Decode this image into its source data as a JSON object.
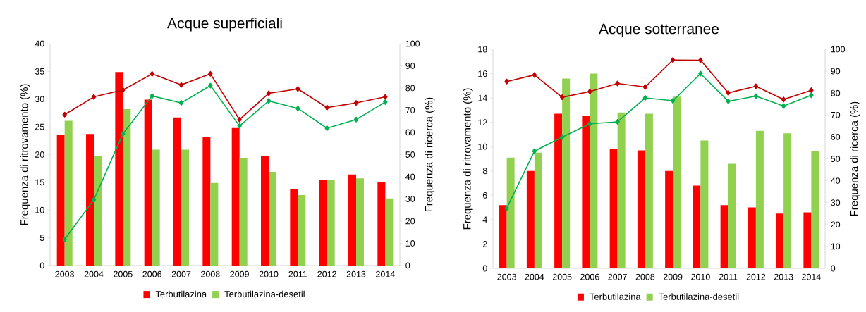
{
  "chart_data": [
    {
      "type": "bar",
      "title": "Acque superficiali",
      "ylabel": "Frequenza di ritrovamento (%)",
      "y2label": "Frequenza di ricerca (%)",
      "categories": [
        "2003",
        "2004",
        "2005",
        "2006",
        "2007",
        "2008",
        "2009",
        "2010",
        "2011",
        "2012",
        "2013",
        "2014"
      ],
      "series": [
        {
          "name": "Terbutilazina",
          "color": "#ff0000",
          "values": [
            23.5,
            23.7,
            34.9,
            29.9,
            26.7,
            23.1,
            24.8,
            19.7,
            13.7,
            15.4,
            16.4,
            15.1
          ]
        },
        {
          "name": "Terbutilazina-desetil",
          "color": "#92d050",
          "values": [
            26.1,
            19.7,
            28.2,
            20.9,
            20.9,
            14.9,
            19.4,
            16.9,
            12.7,
            15.4,
            15.7,
            12.1
          ]
        },
        {
          "type": "line",
          "axis": "y2",
          "marker": "diamond",
          "color": "#c00000",
          "values": [
            68.0,
            76.0,
            79.1,
            86.4,
            81.4,
            86.4,
            65.8,
            77.6,
            79.6,
            71.2,
            73.3,
            76.0
          ]
        },
        {
          "type": "line",
          "axis": "y2",
          "marker": "diamond",
          "color": "#00b050",
          "values": [
            11.8,
            29.6,
            59.4,
            76.4,
            73.3,
            81.1,
            62.9,
            74.2,
            70.8,
            61.9,
            65.8,
            73.7
          ]
        }
      ],
      "ylim": [
        0,
        40
      ],
      "yticks": [
        0,
        5,
        10,
        15,
        20,
        25,
        30,
        35,
        40
      ],
      "y2lim": [
        0,
        100
      ],
      "y2ticks": [
        0,
        10,
        20,
        30,
        40,
        50,
        60,
        70,
        80,
        90,
        100
      ],
      "legend": "bottom"
    },
    {
      "type": "bar",
      "title": "Acque sotterranee",
      "ylabel": "Frequenza di ritrovamento (%)",
      "y2label": "Frequenza di ricerca (%)",
      "categories": [
        "2003",
        "2004",
        "2005",
        "2006",
        "2007",
        "2008",
        "2009",
        "2010",
        "2011",
        "2012",
        "2013",
        "2014"
      ],
      "series": [
        {
          "name": "Terbutilazina",
          "color": "#ff0000",
          "values": [
            5.2,
            8.0,
            12.7,
            12.5,
            9.8,
            9.7,
            8.0,
            6.8,
            5.2,
            5.0,
            4.5,
            4.6
          ]
        },
        {
          "name": "Terbutilazina-desetil",
          "color": "#92d050",
          "values": [
            9.1,
            9.5,
            15.6,
            16.0,
            12.8,
            12.7,
            14.1,
            10.5,
            8.6,
            11.3,
            11.1,
            9.6
          ]
        },
        {
          "type": "line",
          "axis": "y2",
          "marker": "diamond",
          "color": "#c00000",
          "values": [
            85.3,
            88.3,
            78.1,
            80.7,
            84.4,
            82.8,
            95.1,
            95.0,
            80.1,
            83.1,
            77.1,
            81.3
          ]
        },
        {
          "type": "line",
          "axis": "y2",
          "marker": "diamond",
          "color": "#00b050",
          "values": [
            27.5,
            53.5,
            59.9,
            66.0,
            66.9,
            77.8,
            76.5,
            88.9,
            76.3,
            78.6,
            74.1,
            79.0
          ]
        }
      ],
      "ylim": [
        0,
        18
      ],
      "yticks": [
        0,
        2,
        4,
        6,
        8,
        10,
        12,
        14,
        16,
        18
      ],
      "y2lim": [
        0,
        100
      ],
      "y2ticks": [
        0,
        10,
        20,
        30,
        40,
        50,
        60,
        70,
        80,
        90,
        100
      ],
      "legend": "bottom"
    }
  ]
}
